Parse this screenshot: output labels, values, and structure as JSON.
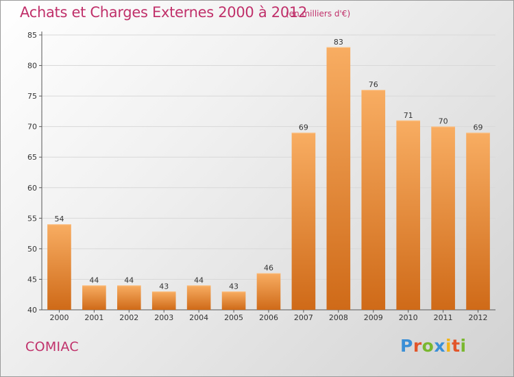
{
  "header": {
    "title": "Achats et Charges Externes 2000 à 2012",
    "subtitle": "(en milliers d'€)"
  },
  "footer": {
    "place": "COMIAC",
    "logo": "Proxiti",
    "logo_colors": [
      "#3a8fd6",
      "#e2552a",
      "#79b72f",
      "#3a8fd6",
      "#f2b418",
      "#e2552a",
      "#79b72f"
    ]
  },
  "colors": {
    "title": "#c0306a",
    "bar_top": "#f8ad62",
    "bar_bottom": "#cf6a18",
    "grid": "#d8d8d8"
  },
  "chart_data": {
    "type": "bar",
    "title": "Achats et Charges Externes 2000 à 2012",
    "subtitle": "(en milliers d'€)",
    "categories": [
      "2000",
      "2001",
      "2002",
      "2003",
      "2004",
      "2005",
      "2006",
      "2007",
      "2008",
      "2009",
      "2010",
      "2011",
      "2012"
    ],
    "values": [
      54,
      44,
      44,
      43,
      44,
      43,
      46,
      69,
      83,
      76,
      71,
      70,
      69
    ],
    "ylim": [
      40,
      85
    ],
    "yticks": [
      40,
      45,
      50,
      55,
      60,
      65,
      70,
      75,
      80,
      85
    ],
    "grid": true,
    "xlabel": "",
    "ylabel": ""
  }
}
